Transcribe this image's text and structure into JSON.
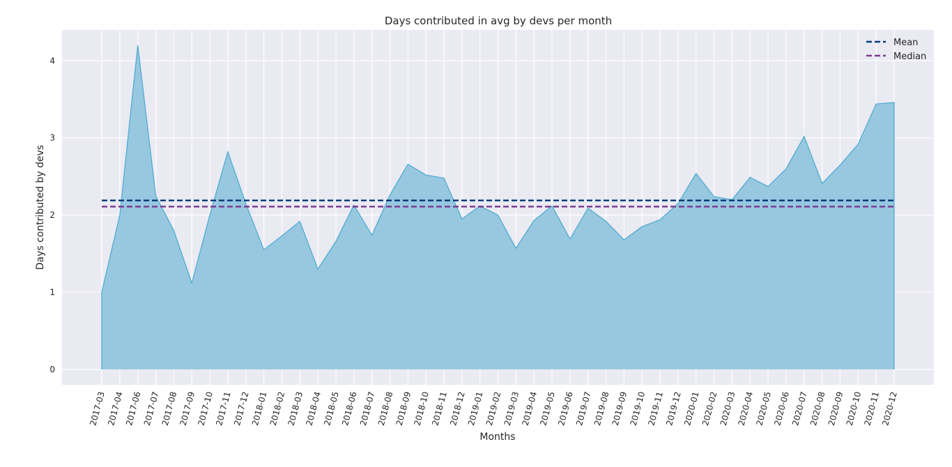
{
  "chart_data": {
    "type": "area",
    "title": "Days contributed in avg by devs per month",
    "xlabel": "Months",
    "ylabel": "Days contributed by devs",
    "x": [
      "2017-03",
      "2017-04",
      "2017-06",
      "2017-07",
      "2017-08",
      "2017-09",
      "2017-10",
      "2017-11",
      "2017-12",
      "2018-01",
      "2018-02",
      "2018-03",
      "2018-04",
      "2018-05",
      "2018-06",
      "2018-07",
      "2018-08",
      "2018-09",
      "2018-10",
      "2018-11",
      "2018-12",
      "2019-01",
      "2019-02",
      "2019-03",
      "2019-04",
      "2019-05",
      "2019-06",
      "2019-07",
      "2019-08",
      "2019-09",
      "2019-10",
      "2019-11",
      "2019-12",
      "2020-01",
      "2020-02",
      "2020-03",
      "2020-04",
      "2020-05",
      "2020-06",
      "2020-07",
      "2020-08",
      "2020-09",
      "2020-10",
      "2020-11",
      "2020-12"
    ],
    "series": [
      {
        "values": [
          1.0,
          2.0,
          4.2,
          2.25,
          1.8,
          1.12,
          2.0,
          2.82,
          2.15,
          1.55,
          1.73,
          1.92,
          1.3,
          1.66,
          2.13,
          1.74,
          2.26,
          2.66,
          2.52,
          2.48,
          1.95,
          2.12,
          2.0,
          1.57,
          1.93,
          2.12,
          1.69,
          2.09,
          1.92,
          1.68,
          1.85,
          1.94,
          2.15,
          2.54,
          2.24,
          2.2,
          2.49,
          2.37,
          2.6,
          3.02,
          2.41,
          2.65,
          2.92,
          3.44,
          3.46
        ],
        "color": "#92c6dd",
        "line_color": "#4aa8cf"
      }
    ],
    "reference_lines": [
      {
        "name": "Mean",
        "value": 2.19,
        "color": "#053c7a",
        "style": "dashed"
      },
      {
        "name": "Median",
        "value": 2.11,
        "color": "#7a3b8f",
        "style": "dashed"
      }
    ],
    "yticks": [
      "0",
      "1",
      "2",
      "3",
      "4"
    ],
    "ylim": [
      -0.2,
      4.4
    ],
    "grid": true,
    "legend_position": "top-right"
  }
}
